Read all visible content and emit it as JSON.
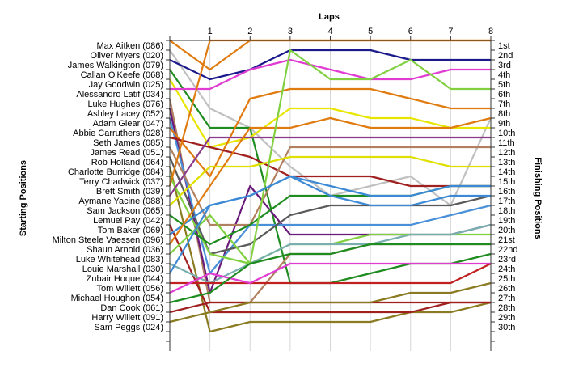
{
  "chart_data": {
    "type": "line",
    "x_axis_title": "Laps",
    "left_axis_title": "Starting Positions",
    "right_axis_title": "Finishing Positions",
    "x": [
      0,
      1,
      2,
      3,
      4,
      5,
      6,
      7,
      8
    ],
    "x_tick_labels": [
      "1",
      "2",
      "3",
      "4",
      "5",
      "6",
      "7",
      "8"
    ],
    "xlim": [
      0,
      8
    ],
    "ylim": [
      1,
      33
    ],
    "grid": "vertical",
    "start_labels": [
      "Max Aitken (086)",
      "Oliver Myers (020)",
      "James Walkington (079)",
      "Callan O'Keefe (068)",
      "Jay Goodwin (025)",
      "Alessandro Latif (034)",
      "Luke Hughes (076)",
      "Ashley Lacey (052)",
      "Adam Glear (047)",
      "Abbie Carruthers (028)",
      "Seth James (085)",
      "James Read (051)",
      "Rob Holland (064)",
      "Charlotte Burridge (084)",
      "Terry Chadwick (037)",
      "Brett Smith (039)",
      "Aymane Yacine (088)",
      "Sam Jackson (065)",
      "Lemuel Pay (042)",
      "Tom Baker (069)",
      "Milton Steele Vaessen (096)",
      "Shaun Arnold (036)",
      "Luke Whitehead (083)",
      "Louie Marshall (030)",
      "Zubair Hoque (044)",
      "Tom Willett (056)",
      "Michael Houghon (054)",
      "Dan Cook (061)",
      "Harry Willett (091)",
      "Sam Peggs (024)"
    ],
    "finish_labels": [
      "1st",
      "2nd",
      "3rd",
      "4th",
      "5th",
      "6th",
      "7th",
      "8th",
      "9th",
      "10th",
      "11th",
      "12th",
      "13th",
      "14th",
      "15th",
      "16th",
      "17th",
      "18th",
      "19th",
      "20th",
      "21st",
      "22nd",
      "23rd",
      "24th",
      "25th",
      "26th",
      "27th",
      "28th",
      "29th",
      "30th"
    ],
    "series": [
      {
        "color": "#e07b10",
        "values": [
          1,
          4,
          1,
          1,
          1,
          1,
          1,
          1,
          1
        ]
      },
      {
        "color": "#c0c0c0",
        "values": [
          2,
          8,
          10,
          14,
          17,
          16,
          15,
          18,
          9
        ]
      },
      {
        "color": "#1a1a8c",
        "values": [
          3,
          5,
          4,
          2,
          2,
          2,
          3,
          3,
          3
        ]
      },
      {
        "color": "#1e8c1e",
        "values": [
          4,
          10,
          10,
          26,
          26,
          25,
          24,
          24,
          23
        ]
      },
      {
        "color": "#e8e600",
        "values": [
          5,
          12,
          11,
          8,
          8,
          9,
          9,
          10,
          10
        ]
      },
      {
        "color": "#e03cd2",
        "values": [
          6,
          6,
          4,
          3,
          4,
          5,
          5,
          4,
          4
        ]
      },
      {
        "color": "#b08060",
        "values": [
          7,
          28,
          28,
          23,
          23,
          22,
          22,
          22,
          22
        ]
      },
      {
        "color": "#6a1a7a",
        "values": [
          8,
          27,
          16,
          21,
          21,
          21,
          21,
          21,
          20
        ]
      },
      {
        "color": "#4a90d9",
        "values": [
          9,
          25,
          20,
          20,
          20,
          20,
          20,
          19,
          18
        ]
      },
      {
        "color": "#e07b10",
        "values": [
          10,
          15,
          7,
          6,
          6,
          6,
          7,
          8,
          8
        ]
      },
      {
        "color": "#a02020",
        "values": [
          11,
          12,
          13,
          15,
          15,
          15,
          16,
          16,
          16
        ]
      },
      {
        "color": "#b08060",
        "values": [
          12,
          20,
          20,
          12,
          12,
          12,
          12,
          12,
          12
        ]
      },
      {
        "color": "#5a5a5a",
        "values": [
          13,
          23,
          22,
          19,
          18,
          18,
          18,
          18,
          17
        ]
      },
      {
        "color": "#8a7a20",
        "values": [
          14,
          31,
          30,
          30,
          30,
          30,
          29,
          29,
          28
        ]
      },
      {
        "color": "#80d040",
        "values": [
          15,
          23,
          24,
          22,
          22,
          21,
          21,
          21,
          21
        ]
      },
      {
        "color": "#e07b10",
        "values": [
          16,
          1,
          1,
          1,
          1,
          1,
          1,
          1,
          1
        ]
      },
      {
        "color": "#8a3a8a",
        "values": [
          17,
          11,
          11,
          11,
          11,
          11,
          11,
          11,
          11
        ]
      },
      {
        "color": "#e0e000",
        "values": [
          18,
          14,
          14,
          13,
          13,
          13,
          13,
          14,
          14
        ]
      },
      {
        "color": "#1e8c1e",
        "values": [
          19,
          22,
          20,
          17,
          17,
          17,
          17,
          16,
          16
        ]
      },
      {
        "color": "#a02020",
        "values": [
          20,
          29,
          29,
          29,
          29,
          29,
          29,
          28,
          28
        ]
      },
      {
        "color": "#3c8ad6",
        "values": [
          21,
          18,
          17,
          15,
          17,
          18,
          18,
          17,
          17
        ]
      },
      {
        "color": "#e07b10",
        "values": [
          22,
          16,
          10,
          10,
          9,
          10,
          10,
          10,
          9
        ]
      },
      {
        "color": "#80d040",
        "values": [
          23,
          19,
          24,
          2,
          5,
          5,
          3,
          6,
          6
        ]
      },
      {
        "color": "#7aafb0",
        "values": [
          24,
          26,
          24,
          22,
          22,
          22,
          21,
          21,
          20
        ]
      },
      {
        "color": "#3c8ad6",
        "values": [
          25,
          18,
          17,
          15,
          16,
          17,
          17,
          16,
          16
        ]
      },
      {
        "color": "#c02020",
        "values": [
          26,
          26,
          26,
          26,
          26,
          26,
          26,
          26,
          24
        ]
      },
      {
        "color": "#e03cd2",
        "values": [
          27,
          25,
          26,
          24,
          24,
          24,
          24,
          24,
          24
        ]
      },
      {
        "color": "#1e8c1e",
        "values": [
          28,
          27,
          24,
          23,
          23,
          22,
          22,
          22,
          22
        ]
      },
      {
        "color": "#a02020",
        "values": [
          29,
          28,
          28,
          28,
          28,
          28,
          28,
          28,
          28
        ]
      },
      {
        "color": "#8a7a20",
        "values": [
          30,
          29,
          28,
          28,
          28,
          28,
          27,
          27,
          26
        ]
      }
    ]
  }
}
